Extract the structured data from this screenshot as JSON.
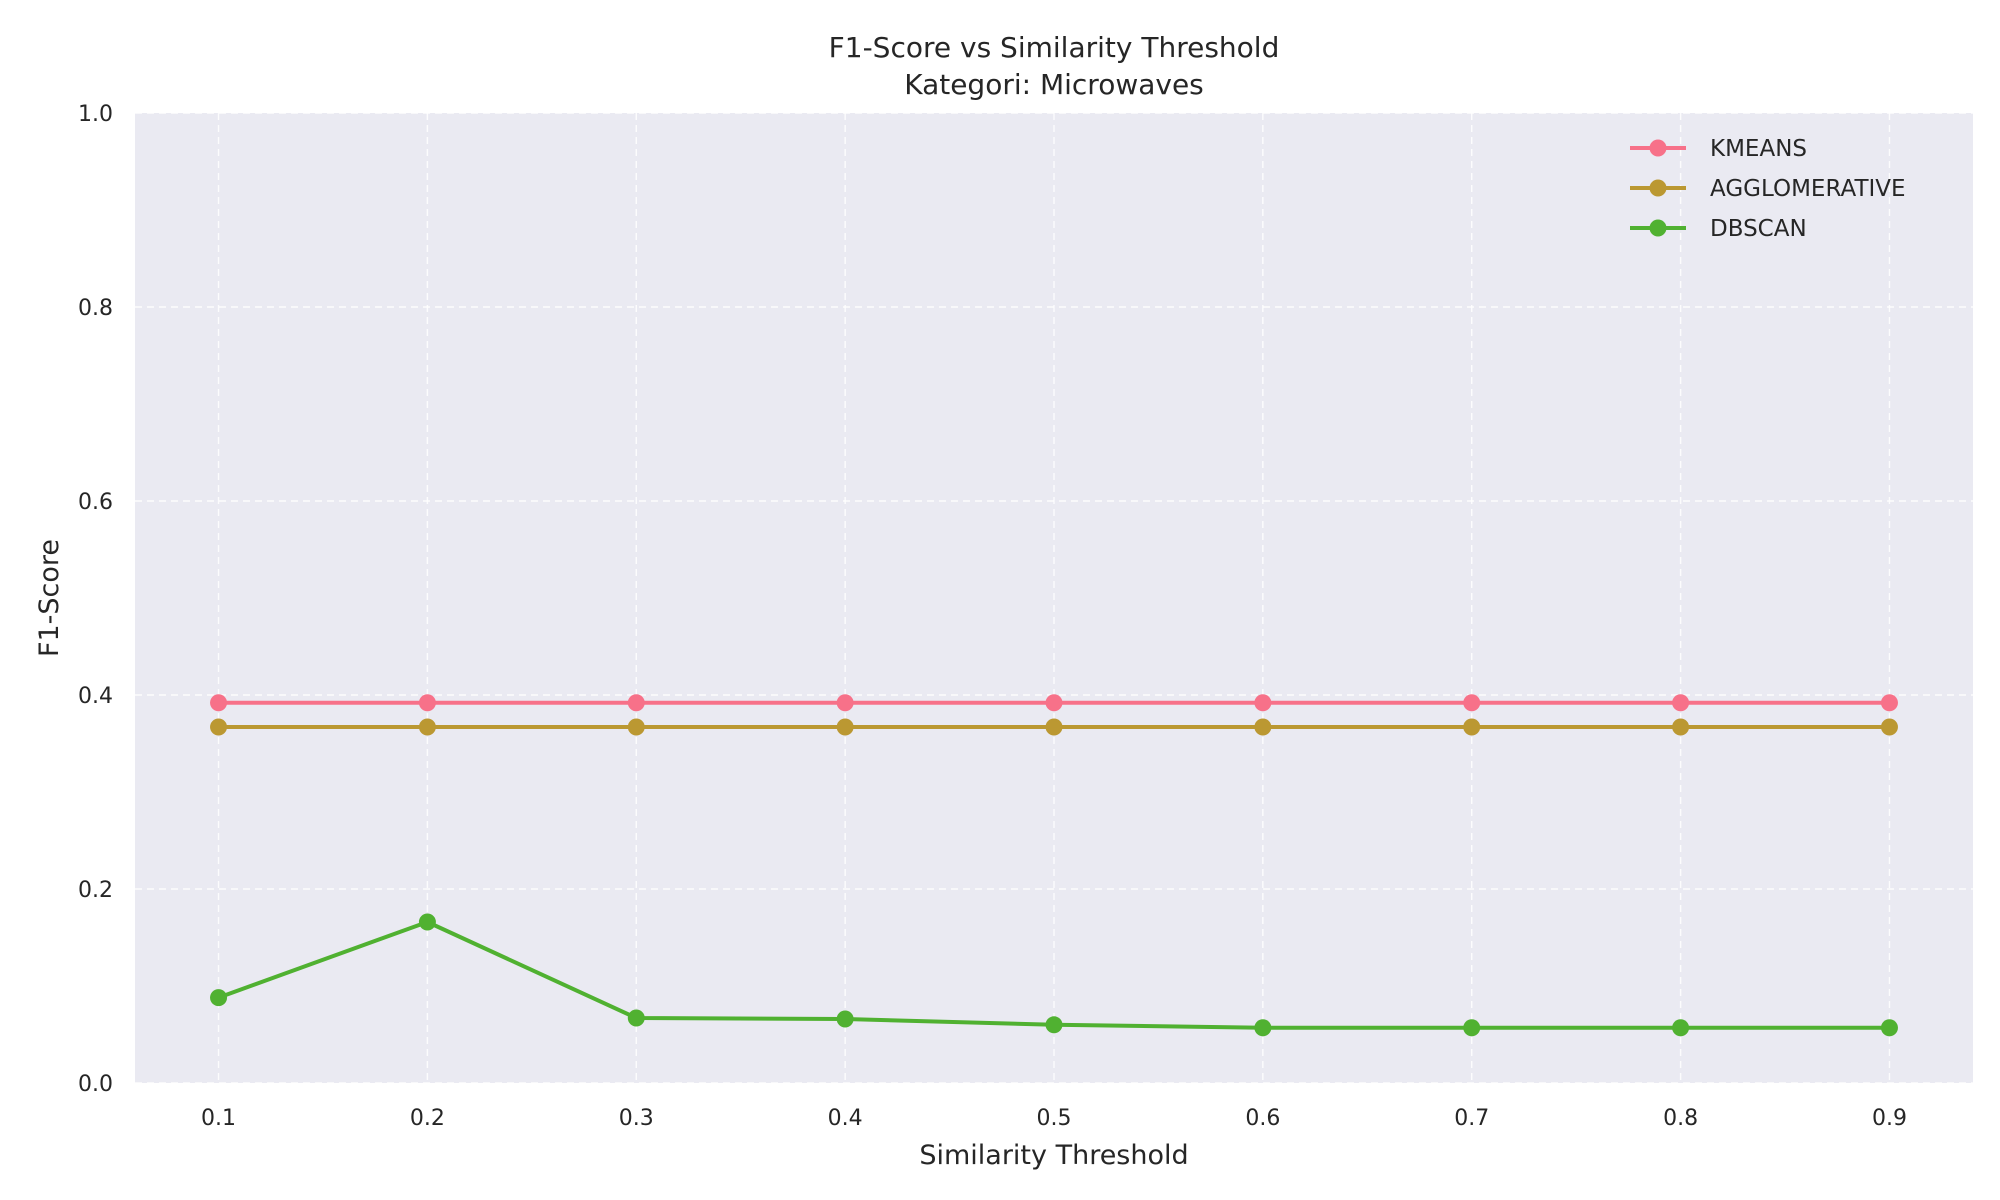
{
  "chart_data": {
    "type": "line",
    "title": "F1-Score vs Similarity Threshold",
    "subtitle": "Kategori: Microwaves",
    "xlabel": "Similarity Threshold",
    "ylabel": "F1-Score",
    "x": [
      0.1,
      0.2,
      0.3,
      0.4,
      0.5,
      0.6,
      0.7,
      0.8,
      0.9
    ],
    "x_tick_labels": [
      "0.1",
      "0.2",
      "0.3",
      "0.4",
      "0.5",
      "0.6",
      "0.7",
      "0.8",
      "0.9"
    ],
    "xlim": [
      0.06,
      0.94
    ],
    "ylim": [
      0.0,
      1.0
    ],
    "y_ticks": [
      0.0,
      0.2,
      0.4,
      0.6,
      0.8,
      1.0
    ],
    "y_tick_labels": [
      "0.0",
      "0.2",
      "0.4",
      "0.6",
      "0.8",
      "1.0"
    ],
    "grid": true,
    "legend_position": "top-right",
    "plot_background": "#eaeaf2",
    "series": [
      {
        "name": "KMEANS",
        "color": "#f77189",
        "marker": "circle",
        "values": [
          0.392,
          0.392,
          0.392,
          0.392,
          0.392,
          0.392,
          0.392,
          0.392,
          0.392
        ]
      },
      {
        "name": "AGGLOMERATIVE",
        "color": "#bb9832",
        "marker": "circle",
        "values": [
          0.367,
          0.367,
          0.367,
          0.367,
          0.367,
          0.367,
          0.367,
          0.367,
          0.367
        ]
      },
      {
        "name": "DBSCAN",
        "color": "#50b131",
        "marker": "circle",
        "values": [
          0.088,
          0.166,
          0.067,
          0.066,
          0.06,
          0.057,
          0.057,
          0.057,
          0.057
        ]
      }
    ]
  }
}
